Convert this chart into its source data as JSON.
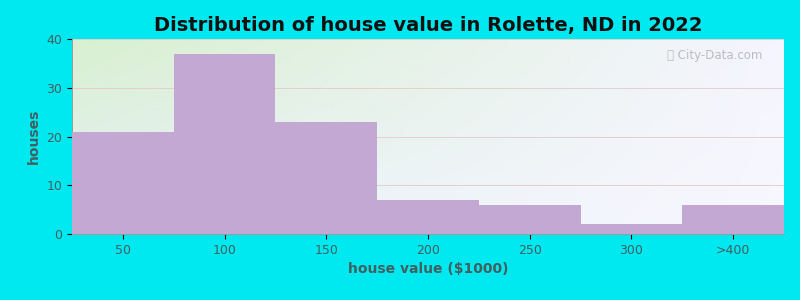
{
  "title": "Distribution of house value in Rolette, ND in 2022",
  "xlabel": "house value ($1000)",
  "ylabel": "houses",
  "categories": [
    "50",
    "100",
    "150",
    "200",
    "250",
    "300",
    ">400"
  ],
  "values": [
    21,
    37,
    23,
    7,
    6,
    2,
    6
  ],
  "bar_color": "#c4a8d4",
  "background_color": "#00e8f0",
  "plot_bg_top_left": "#d8f0d0",
  "plot_bg_right": "#f0f0fa",
  "ylim": [
    0,
    40
  ],
  "yticks": [
    0,
    10,
    20,
    30,
    40
  ],
  "bar_width": 1.0,
  "title_fontsize": 14,
  "label_fontsize": 10,
  "tick_fontsize": 9,
  "tick_color": "#406060",
  "label_color": "#406060",
  "title_color": "#111111"
}
